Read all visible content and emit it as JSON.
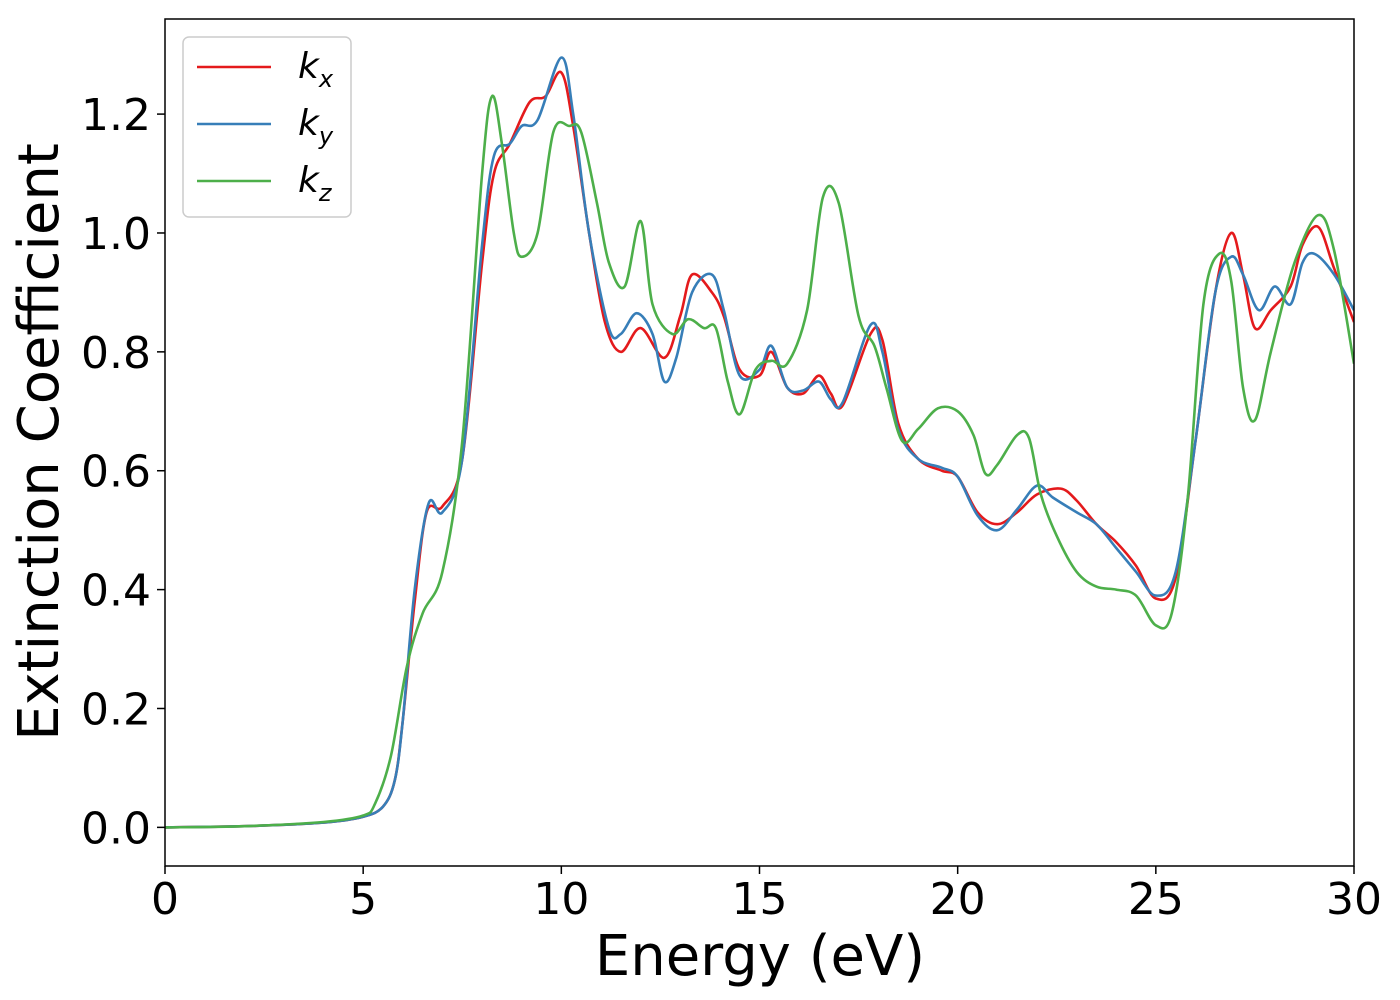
{
  "chart_data": {
    "type": "line",
    "title": "",
    "xlabel": "Energy (eV)",
    "ylabel": "Extinction Coefficient",
    "xlim": [
      0,
      30
    ],
    "ylim": [
      -0.065,
      1.36
    ],
    "xticks": [
      0,
      5,
      10,
      15,
      20,
      25,
      30
    ],
    "xtick_labels": [
      "0",
      "5",
      "10",
      "15",
      "20",
      "25",
      "30"
    ],
    "yticks": [
      0.0,
      0.2,
      0.4,
      0.6,
      0.8,
      1.0,
      1.2
    ],
    "ytick_labels": [
      "0.0",
      "0.2",
      "0.4",
      "0.6",
      "0.8",
      "1.0",
      "1.2"
    ],
    "grid": false,
    "legend": {
      "position": "top-left"
    },
    "series": [
      {
        "name": "k",
        "subscript": "x",
        "color": "#e41a1c",
        "points": [
          [
            0,
            0
          ],
          [
            2,
            0.002
          ],
          [
            4,
            0.008
          ],
          [
            5,
            0.018
          ],
          [
            5.5,
            0.035
          ],
          [
            5.8,
            0.08
          ],
          [
            6.0,
            0.18
          ],
          [
            6.3,
            0.38
          ],
          [
            6.6,
            0.53
          ],
          [
            7.0,
            0.54
          ],
          [
            7.5,
            0.62
          ],
          [
            8.0,
            0.95
          ],
          [
            8.3,
            1.1
          ],
          [
            8.7,
            1.15
          ],
          [
            9.2,
            1.22
          ],
          [
            9.6,
            1.23
          ],
          [
            10.0,
            1.27
          ],
          [
            10.3,
            1.18
          ],
          [
            10.7,
            1.0
          ],
          [
            11.1,
            0.85
          ],
          [
            11.5,
            0.8
          ],
          [
            12.0,
            0.84
          ],
          [
            12.6,
            0.79
          ],
          [
            13.0,
            0.86
          ],
          [
            13.3,
            0.93
          ],
          [
            13.8,
            0.9
          ],
          [
            14.1,
            0.86
          ],
          [
            14.5,
            0.77
          ],
          [
            15.0,
            0.76
          ],
          [
            15.3,
            0.8
          ],
          [
            15.7,
            0.74
          ],
          [
            16.1,
            0.73
          ],
          [
            16.5,
            0.76
          ],
          [
            16.8,
            0.73
          ],
          [
            17.1,
            0.71
          ],
          [
            17.8,
            0.83
          ],
          [
            18.1,
            0.82
          ],
          [
            18.5,
            0.68
          ],
          [
            19.0,
            0.62
          ],
          [
            19.6,
            0.6
          ],
          [
            20.0,
            0.59
          ],
          [
            20.5,
            0.53
          ],
          [
            21.0,
            0.51
          ],
          [
            21.5,
            0.53
          ],
          [
            22.0,
            0.56
          ],
          [
            22.6,
            0.57
          ],
          [
            23.0,
            0.55
          ],
          [
            23.5,
            0.51
          ],
          [
            24.0,
            0.48
          ],
          [
            24.5,
            0.44
          ],
          [
            25.0,
            0.385
          ],
          [
            25.5,
            0.42
          ],
          [
            26.0,
            0.65
          ],
          [
            26.5,
            0.9
          ],
          [
            26.9,
            1.0
          ],
          [
            27.2,
            0.93
          ],
          [
            27.5,
            0.84
          ],
          [
            27.9,
            0.87
          ],
          [
            28.4,
            0.91
          ],
          [
            28.7,
            0.98
          ],
          [
            29.1,
            1.01
          ],
          [
            29.5,
            0.94
          ],
          [
            30.0,
            0.85
          ]
        ]
      },
      {
        "name": "k",
        "subscript": "y",
        "color": "#377eb8",
        "points": [
          [
            0,
            0
          ],
          [
            2,
            0.002
          ],
          [
            4,
            0.008
          ],
          [
            5,
            0.018
          ],
          [
            5.5,
            0.035
          ],
          [
            5.8,
            0.08
          ],
          [
            6.0,
            0.18
          ],
          [
            6.3,
            0.4
          ],
          [
            6.65,
            0.545
          ],
          [
            7.0,
            0.53
          ],
          [
            7.5,
            0.62
          ],
          [
            8.0,
            0.98
          ],
          [
            8.3,
            1.13
          ],
          [
            8.7,
            1.15
          ],
          [
            9.0,
            1.18
          ],
          [
            9.4,
            1.19
          ],
          [
            10.0,
            1.295
          ],
          [
            10.3,
            1.2
          ],
          [
            10.7,
            1.0
          ],
          [
            11.2,
            0.84
          ],
          [
            11.5,
            0.83
          ],
          [
            11.9,
            0.865
          ],
          [
            12.3,
            0.83
          ],
          [
            12.6,
            0.75
          ],
          [
            12.9,
            0.79
          ],
          [
            13.3,
            0.9
          ],
          [
            13.8,
            0.93
          ],
          [
            14.1,
            0.87
          ],
          [
            14.5,
            0.76
          ],
          [
            15.0,
            0.77
          ],
          [
            15.3,
            0.81
          ],
          [
            15.7,
            0.74
          ],
          [
            16.1,
            0.735
          ],
          [
            16.5,
            0.75
          ],
          [
            16.8,
            0.72
          ],
          [
            17.1,
            0.715
          ],
          [
            17.8,
            0.845
          ],
          [
            18.1,
            0.8
          ],
          [
            18.5,
            0.67
          ],
          [
            19.0,
            0.62
          ],
          [
            19.6,
            0.605
          ],
          [
            20.0,
            0.59
          ],
          [
            20.5,
            0.525
          ],
          [
            21.0,
            0.5
          ],
          [
            21.5,
            0.535
          ],
          [
            22.0,
            0.575
          ],
          [
            22.4,
            0.555
          ],
          [
            23.0,
            0.53
          ],
          [
            23.5,
            0.51
          ],
          [
            24.0,
            0.47
          ],
          [
            24.5,
            0.43
          ],
          [
            25.0,
            0.39
          ],
          [
            25.5,
            0.43
          ],
          [
            26.0,
            0.65
          ],
          [
            26.5,
            0.9
          ],
          [
            26.9,
            0.96
          ],
          [
            27.2,
            0.93
          ],
          [
            27.6,
            0.87
          ],
          [
            28.0,
            0.91
          ],
          [
            28.4,
            0.88
          ],
          [
            28.7,
            0.95
          ],
          [
            29.0,
            0.965
          ],
          [
            29.5,
            0.93
          ],
          [
            30.0,
            0.87
          ]
        ]
      },
      {
        "name": "k",
        "subscript": "z",
        "color": "#4daf4a",
        "points": [
          [
            0,
            0
          ],
          [
            2,
            0.002
          ],
          [
            4,
            0.009
          ],
          [
            5,
            0.02
          ],
          [
            5.3,
            0.04
          ],
          [
            5.7,
            0.12
          ],
          [
            6.1,
            0.27
          ],
          [
            6.5,
            0.36
          ],
          [
            7.0,
            0.43
          ],
          [
            7.5,
            0.65
          ],
          [
            8.0,
            1.1
          ],
          [
            8.25,
            1.23
          ],
          [
            8.5,
            1.15
          ],
          [
            8.8,
            1.0
          ],
          [
            9.0,
            0.96
          ],
          [
            9.4,
            1.0
          ],
          [
            9.8,
            1.17
          ],
          [
            10.2,
            1.18
          ],
          [
            10.5,
            1.17
          ],
          [
            10.9,
            1.05
          ],
          [
            11.2,
            0.95
          ],
          [
            11.6,
            0.91
          ],
          [
            12.0,
            1.02
          ],
          [
            12.3,
            0.88
          ],
          [
            12.8,
            0.83
          ],
          [
            13.2,
            0.855
          ],
          [
            13.6,
            0.84
          ],
          [
            13.9,
            0.84
          ],
          [
            14.2,
            0.75
          ],
          [
            14.5,
            0.695
          ],
          [
            14.9,
            0.77
          ],
          [
            15.3,
            0.785
          ],
          [
            15.7,
            0.78
          ],
          [
            16.2,
            0.87
          ],
          [
            16.6,
            1.06
          ],
          [
            17.0,
            1.05
          ],
          [
            17.5,
            0.86
          ],
          [
            17.9,
            0.81
          ],
          [
            18.2,
            0.74
          ],
          [
            18.6,
            0.65
          ],
          [
            19.0,
            0.67
          ],
          [
            19.5,
            0.705
          ],
          [
            20.0,
            0.7
          ],
          [
            20.4,
            0.66
          ],
          [
            20.7,
            0.595
          ],
          [
            21.0,
            0.61
          ],
          [
            21.5,
            0.66
          ],
          [
            21.8,
            0.655
          ],
          [
            22.1,
            0.56
          ],
          [
            22.5,
            0.49
          ],
          [
            23.0,
            0.43
          ],
          [
            23.5,
            0.405
          ],
          [
            24.0,
            0.4
          ],
          [
            24.5,
            0.39
          ],
          [
            25.0,
            0.34
          ],
          [
            25.4,
            0.36
          ],
          [
            25.8,
            0.55
          ],
          [
            26.2,
            0.88
          ],
          [
            26.6,
            0.965
          ],
          [
            26.9,
            0.92
          ],
          [
            27.2,
            0.74
          ],
          [
            27.5,
            0.685
          ],
          [
            27.9,
            0.8
          ],
          [
            28.5,
            0.95
          ],
          [
            29.1,
            1.03
          ],
          [
            29.5,
            0.97
          ],
          [
            30.0,
            0.78
          ]
        ]
      }
    ]
  }
}
